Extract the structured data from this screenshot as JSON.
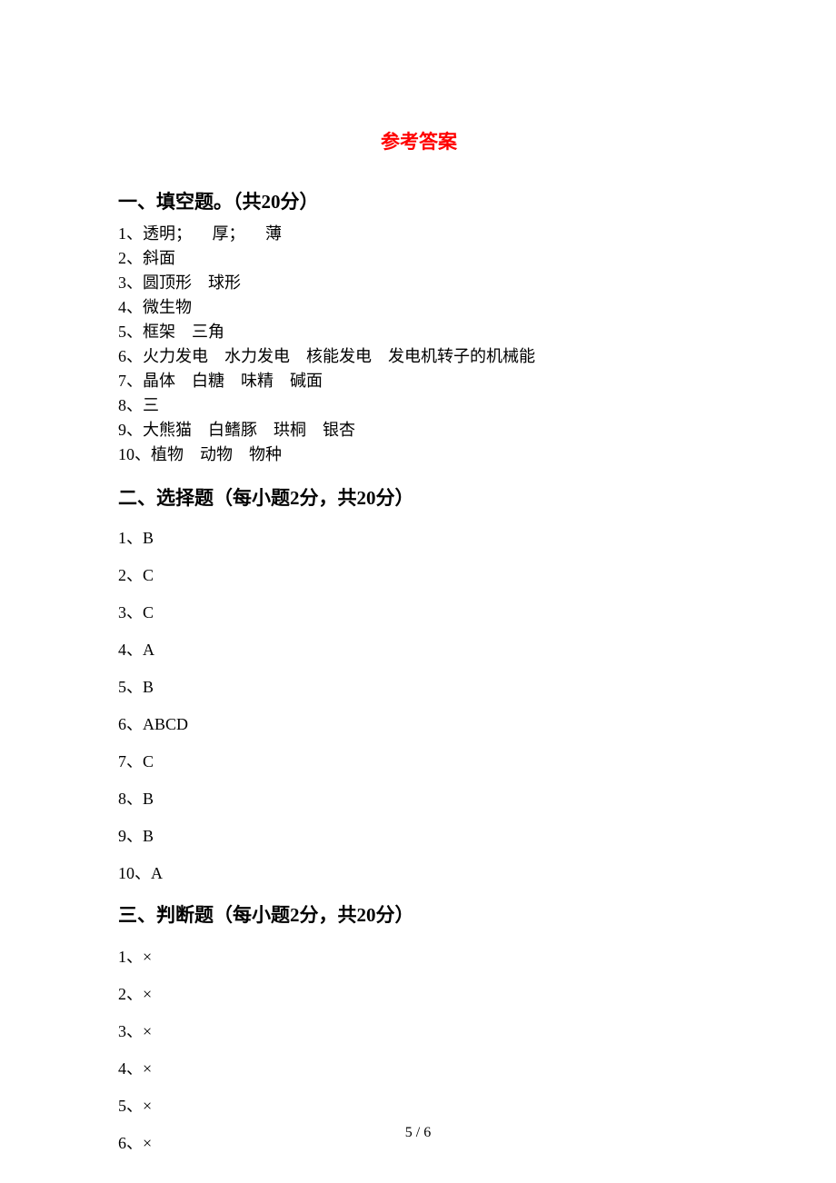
{
  "title": "参考答案",
  "sections": {
    "fill": {
      "heading": "一、填空题。（共20分）",
      "items": [
        "1、透明；     厚；     薄",
        "2、斜面",
        "3、圆顶形    球形",
        "4、微生物",
        "5、框架    三角",
        "6、火力发电    水力发电    核能发电    发电机转子的机械能",
        "7、晶体    白糖    味精    碱面",
        "8、三",
        "9、大熊猫    白鳍豚    珙桐    银杏",
        "10、植物    动物    物种"
      ]
    },
    "choice": {
      "heading": "二、选择题（每小题2分，共20分）",
      "items": [
        "1、B",
        "2、C",
        "3、C",
        "4、A",
        "5、B",
        "6、ABCD",
        "7、C",
        "8、B",
        "9、B",
        "10、A"
      ]
    },
    "judge": {
      "heading": "三、判断题（每小题2分，共20分）",
      "items": [
        "1、×",
        "2、×",
        "3、×",
        "4、×",
        "5、×",
        "6、×"
      ]
    }
  },
  "footer": "5 / 6"
}
